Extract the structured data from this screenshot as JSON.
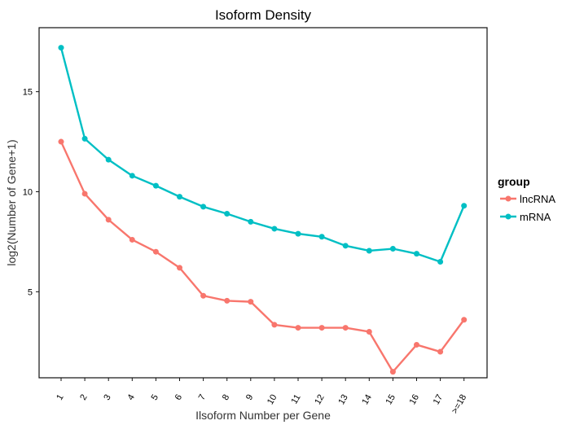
{
  "chart_data": {
    "type": "line",
    "title": "Isoform Density",
    "xlabel": "Ilsoform Number per Gene",
    "ylabel": "log2(Number of Gene+1)",
    "categories": [
      "1",
      "2",
      "3",
      "4",
      "5",
      "6",
      "7",
      "8",
      "9",
      "10",
      "11",
      "12",
      "13",
      "14",
      "15",
      "16",
      "17",
      ">=18"
    ],
    "ylim": [
      0.7,
      18.2
    ],
    "yticks": [
      5,
      10,
      15
    ],
    "grid": false,
    "legend": {
      "title": "group",
      "position": "right"
    },
    "series": [
      {
        "name": "lncRNA",
        "color": "#F8766D",
        "values": [
          12.5,
          9.9,
          8.6,
          7.6,
          7.0,
          6.2,
          4.8,
          4.55,
          4.5,
          3.35,
          3.2,
          3.2,
          3.2,
          3.0,
          1.0,
          2.35,
          2.0,
          3.6
        ]
      },
      {
        "name": "mRNA",
        "color": "#00BFC4",
        "values": [
          17.2,
          12.65,
          11.6,
          10.8,
          10.3,
          9.75,
          9.25,
          8.9,
          8.5,
          8.15,
          7.9,
          7.75,
          7.3,
          7.05,
          7.15,
          6.9,
          6.5,
          9.3
        ]
      }
    ]
  }
}
